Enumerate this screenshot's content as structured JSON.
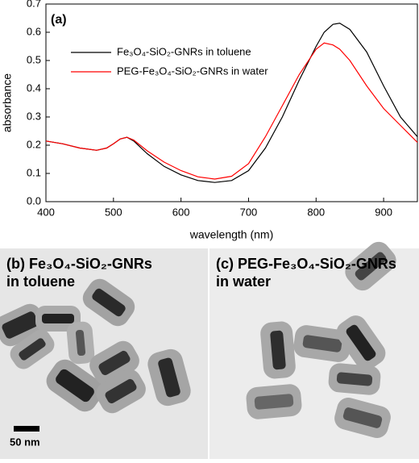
{
  "chart_data": {
    "type": "line",
    "annotation": "(a)",
    "x_label": "wavelength (nm)",
    "y_label": "absorbance",
    "x": [
      400,
      425,
      450,
      475,
      490,
      500,
      510,
      520,
      530,
      550,
      575,
      600,
      625,
      650,
      675,
      700,
      725,
      750,
      775,
      800,
      812,
      825,
      835,
      850,
      875,
      900,
      925,
      950
    ],
    "series": [
      {
        "name": "Fe₃O₄-SiO₂-GNRs in toluene",
        "color": "#000000",
        "values": [
          0.215,
          0.205,
          0.19,
          0.182,
          0.19,
          0.205,
          0.222,
          0.228,
          0.215,
          0.17,
          0.125,
          0.095,
          0.075,
          0.068,
          0.075,
          0.11,
          0.19,
          0.3,
          0.43,
          0.55,
          0.6,
          0.628,
          0.632,
          0.61,
          0.53,
          0.41,
          0.3,
          0.23
        ]
      },
      {
        "name": "PEG-Fe₃O₄-SiO₂-GNRs in water",
        "color": "#ff0000",
        "values": [
          0.215,
          0.205,
          0.19,
          0.182,
          0.19,
          0.205,
          0.222,
          0.228,
          0.218,
          0.18,
          0.14,
          0.11,
          0.088,
          0.08,
          0.09,
          0.135,
          0.23,
          0.34,
          0.45,
          0.54,
          0.562,
          0.555,
          0.54,
          0.5,
          0.41,
          0.33,
          0.27,
          0.21
        ]
      }
    ],
    "xlim": [
      400,
      950
    ],
    "xticks": [
      400,
      500,
      600,
      700,
      800,
      900
    ],
    "ylim": [
      0,
      0.7
    ],
    "yticks": [
      {
        "value": 0,
        "label": "0.0"
      },
      0.1,
      0.2,
      0.3,
      0.4,
      0.5,
      0.6,
      0.7
    ]
  },
  "panel_b": {
    "label": "(b) Fe₃O₄-SiO₂-GNRs",
    "label_line2": "in toluene",
    "scale_bar": "50 nm"
  },
  "panel_c": {
    "label": "(c) PEG-Fe₃O₄-SiO₂-GNRs",
    "label_line2": "in water"
  }
}
